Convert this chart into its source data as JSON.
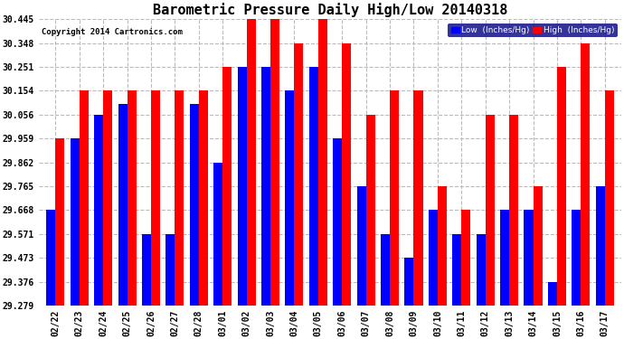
{
  "title": "Barometric Pressure Daily High/Low 20140318",
  "copyright": "Copyright 2014 Cartronics.com",
  "legend_low": "Low  (Inches/Hg)",
  "legend_high": "High  (Inches/Hg)",
  "dates": [
    "02/22",
    "02/23",
    "02/24",
    "02/25",
    "02/26",
    "02/27",
    "02/28",
    "03/01",
    "03/02",
    "03/03",
    "03/04",
    "03/05",
    "03/06",
    "03/07",
    "03/08",
    "03/09",
    "03/10",
    "03/11",
    "03/12",
    "03/13",
    "03/14",
    "03/15",
    "03/16",
    "03/17"
  ],
  "low_values": [
    29.668,
    29.959,
    30.056,
    30.1,
    29.571,
    29.571,
    30.1,
    29.862,
    30.251,
    30.251,
    30.154,
    30.251,
    29.959,
    29.765,
    29.571,
    29.473,
    29.668,
    29.571,
    29.571,
    29.668,
    29.668,
    29.376,
    29.668,
    29.765
  ],
  "high_values": [
    29.959,
    30.154,
    30.154,
    30.154,
    30.154,
    30.154,
    30.154,
    30.251,
    30.445,
    30.445,
    30.348,
    30.445,
    30.348,
    30.056,
    30.154,
    30.154,
    29.765,
    29.668,
    30.056,
    30.056,
    29.765,
    30.251,
    30.348,
    30.154
  ],
  "ylim_min": 29.279,
  "ylim_max": 30.445,
  "yticks": [
    29.279,
    29.376,
    29.473,
    29.571,
    29.668,
    29.765,
    29.862,
    29.959,
    30.056,
    30.154,
    30.251,
    30.348,
    30.445
  ],
  "low_color": "#0000ff",
  "high_color": "#ff0000",
  "bg_color": "#ffffff",
  "grid_color": "#bbbbbb",
  "title_fontsize": 11,
  "tick_fontsize": 7,
  "bar_width": 0.38
}
